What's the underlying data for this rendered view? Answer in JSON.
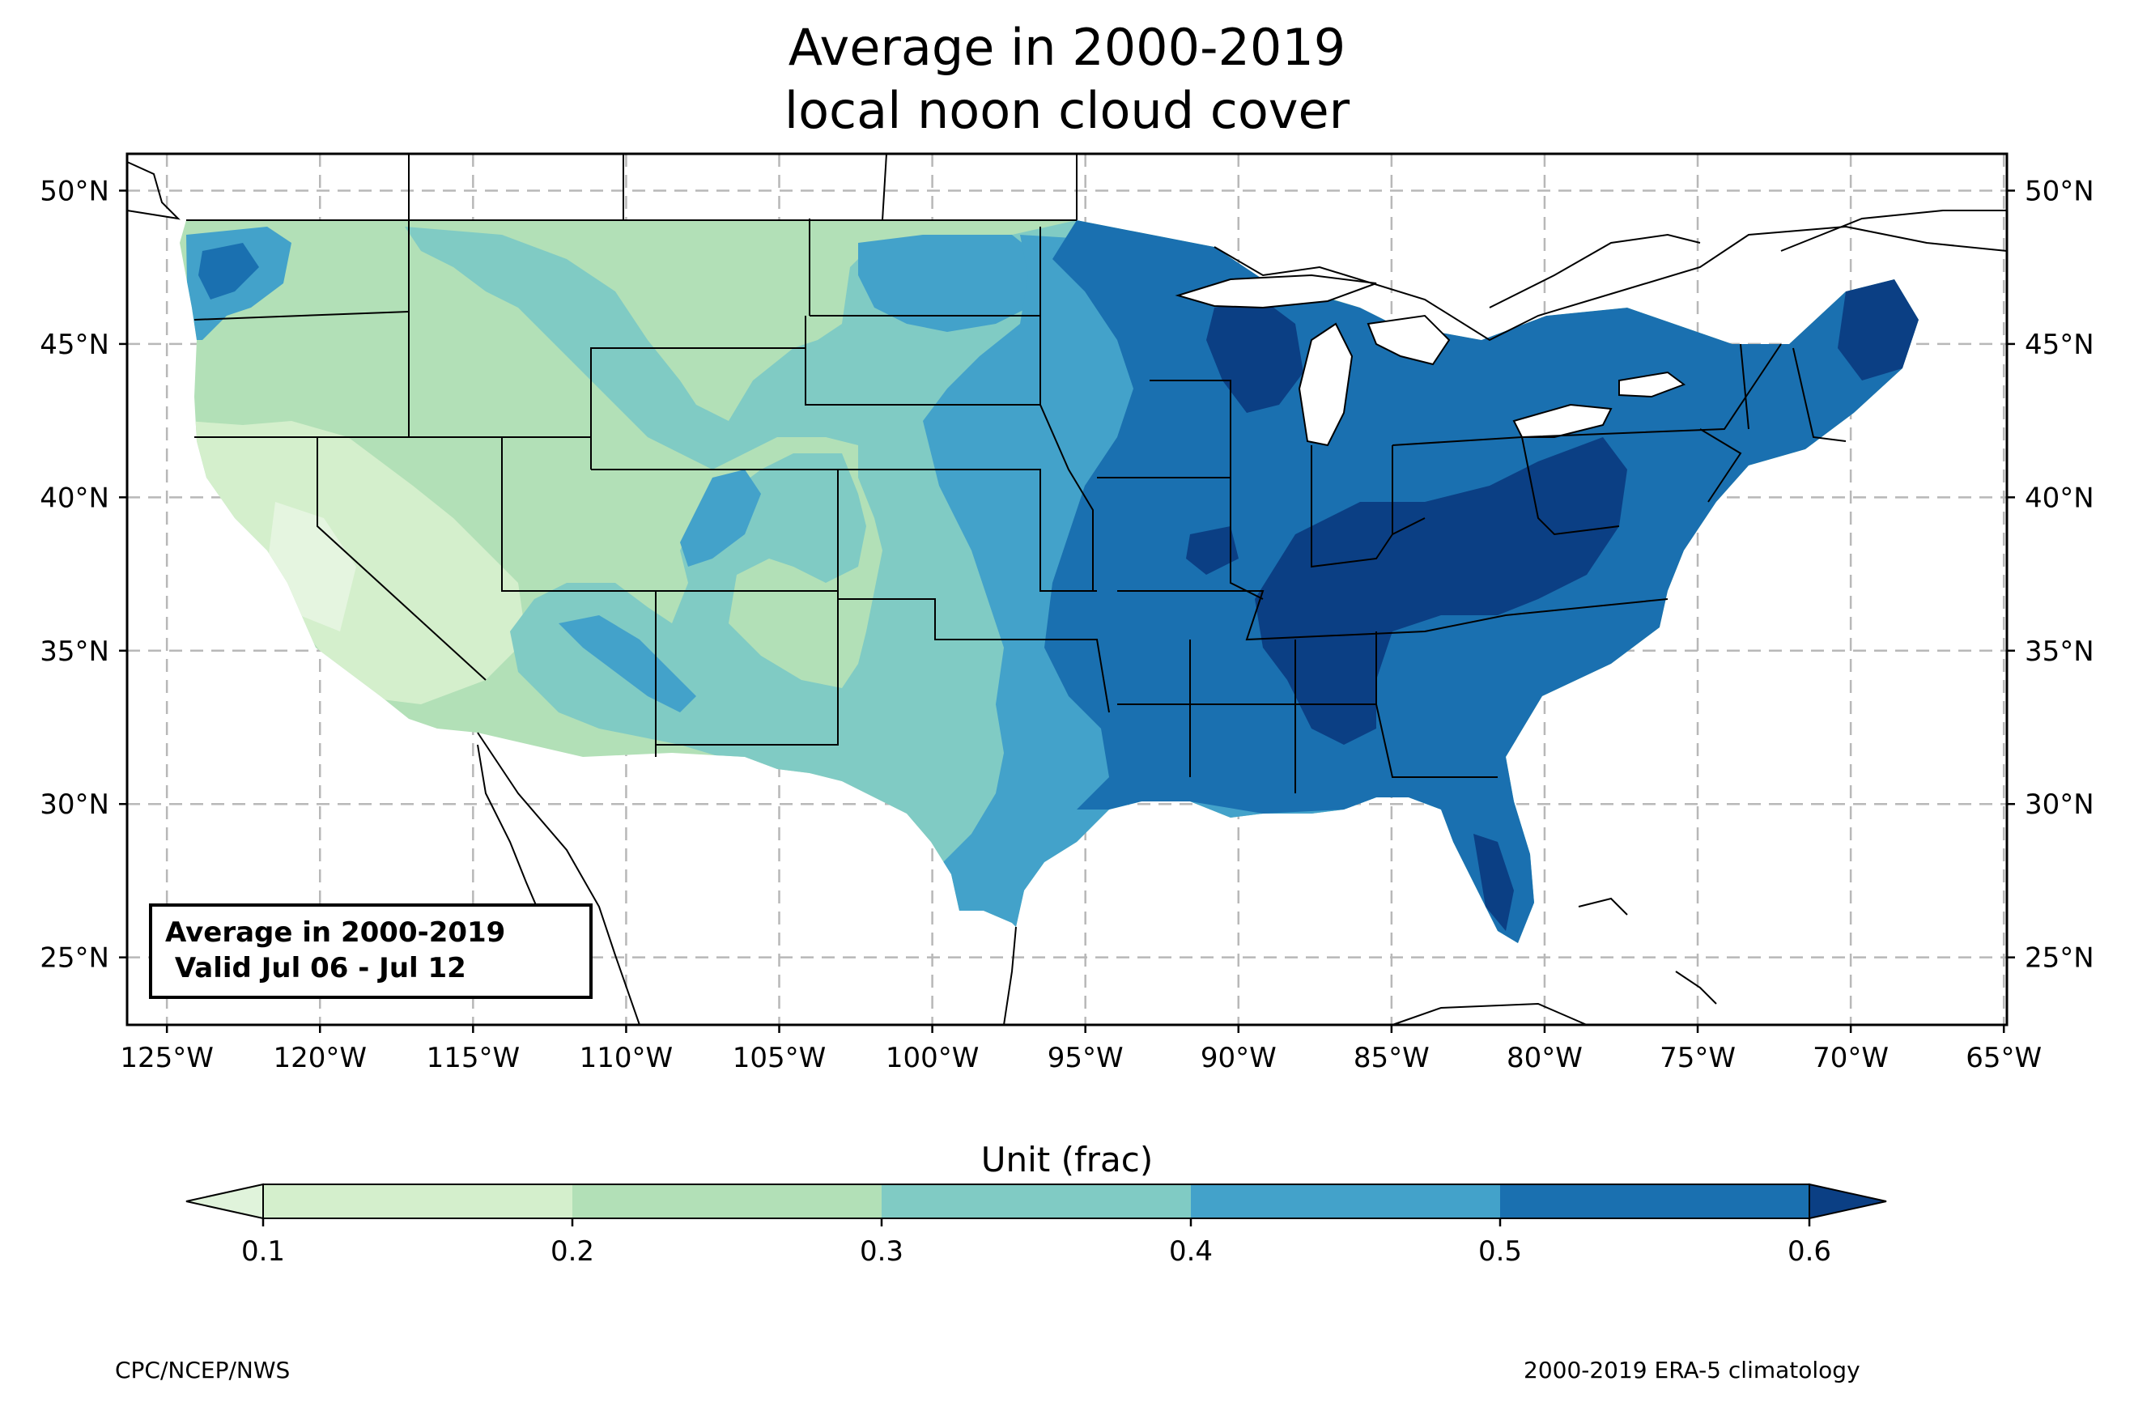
{
  "title": {
    "line1": "Average in 2000-2019",
    "line2": "local noon cloud cover"
  },
  "map": {
    "region": "CONUS",
    "lon_range": [
      -126.3,
      -64.9
    ],
    "lat_range": [
      22.8,
      51.2
    ],
    "lon_ticks": [
      "125°W",
      "120°W",
      "115°W",
      "110°W",
      "105°W",
      "100°W",
      "95°W",
      "90°W",
      "85°W",
      "80°W",
      "75°W",
      "70°W",
      "65°W"
    ],
    "lat_ticks": [
      "50°N",
      "45°N",
      "40°N",
      "35°N",
      "30°N",
      "25°N"
    ],
    "gridlines": "dashed gray"
  },
  "info_box": {
    "line1": "Average in 2000-2019",
    "line2": " Valid Jul 06 - Jul 12"
  },
  "colorbar": {
    "title": "Unit (frac)",
    "ticks": [
      "0.1",
      "0.2",
      "0.3",
      "0.4",
      "0.5",
      "0.6"
    ],
    "colors": [
      "#e0f3db",
      "#d4efcc",
      "#b2e0b7",
      "#80cbc4",
      "#43a2ca",
      "#1a70b0",
      "#0b3f84"
    ],
    "extend": "both"
  },
  "footer": {
    "left": "CPC/NCEP/NWS",
    "right": "2000-2019 ERA-5 climatology"
  }
}
